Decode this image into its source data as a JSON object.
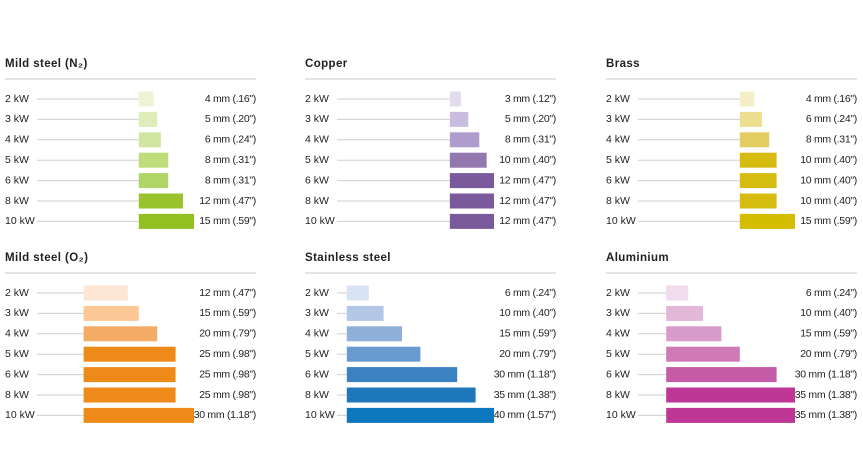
{
  "chart_data": [
    {
      "type": "bar",
      "title": "Mild steel (N₂)",
      "categories": [
        "2 kW",
        "3 kW",
        "4 kW",
        "5 kW",
        "6 kW",
        "8 kW",
        "10 kW"
      ],
      "values": [
        4,
        5,
        6,
        8,
        8,
        12,
        15
      ],
      "value_labels": [
        "4 mm (.16\")",
        "5 mm (.20\")",
        "6 mm (.24\")",
        "8 mm (.31\")",
        "8 mm (.31\")",
        "12 mm (.47\")",
        "15 mm (.59\")"
      ],
      "colors": [
        "#eef3d6",
        "#dfedbb",
        "#cfe6a0",
        "#bedd7a",
        "#b0d567",
        "#9ac22a",
        "#92c020"
      ]
    },
    {
      "type": "bar",
      "title": "Copper",
      "categories": [
        "2 kW",
        "3 kW",
        "4 kW",
        "5 kW",
        "6 kW",
        "8 kW",
        "10 kW"
      ],
      "values": [
        3,
        5,
        8,
        10,
        12,
        12,
        12
      ],
      "value_labels": [
        "3 mm (.12\")",
        "5 mm (.20\")",
        "8 mm (.31\")",
        "10 mm (.40\")",
        "12 mm (.47\")",
        "12 mm (.47\")",
        "12 mm (.47\")"
      ],
      "colors": [
        "#e2dcec",
        "#c9bde0",
        "#b09ccc",
        "#9378b0",
        "#7b5a9c",
        "#7b5a9c",
        "#7b5a9c"
      ]
    },
    {
      "type": "bar",
      "title": "Brass",
      "categories": [
        "2 kW",
        "3 kW",
        "4 kW",
        "5 kW",
        "6 kW",
        "8 kW",
        "10 kW"
      ],
      "values": [
        4,
        6,
        8,
        10,
        10,
        10,
        15
      ],
      "value_labels": [
        "4 mm (.16\")",
        "6 mm (.24\")",
        "8 mm (.31\")",
        "10 mm (.40\")",
        "10 mm (.40\")",
        "10 mm (.40\")",
        "15 mm (.59\")"
      ],
      "colors": [
        "#f4efc8",
        "#ecdf90",
        "#e3cc60",
        "#d6bb10",
        "#d6bb10",
        "#d6bb10",
        "#d4bc00"
      ]
    },
    {
      "type": "bar",
      "title": "Mild steel (O₂)",
      "categories": [
        "2 kW",
        "3 kW",
        "4 kW",
        "5 kW",
        "6 kW",
        "8 kW",
        "10 kW"
      ],
      "values": [
        12,
        15,
        20,
        25,
        25,
        25,
        30
      ],
      "value_labels": [
        "12 mm (.47\")",
        "15 mm (.59\")",
        "20 mm (.79\")",
        "25 mm (.98\")",
        "25 mm (.98\")",
        "25 mm (.98\")",
        "30 mm (1.18\")"
      ],
      "colors": [
        "#fde6d4",
        "#fbc896",
        "#f3ab66",
        "#ee8a18",
        "#ee8a18",
        "#ee8a18",
        "#ee8a18"
      ]
    },
    {
      "type": "bar",
      "title": "Stainless steel",
      "categories": [
        "2 kW",
        "3 kW",
        "4 kW",
        "5 kW",
        "6 kW",
        "8 kW",
        "10 kW"
      ],
      "values": [
        6,
        10,
        15,
        20,
        30,
        35,
        40
      ],
      "value_labels": [
        "6 mm (.24\")",
        "10 mm (.40\")",
        "15 mm (.59\")",
        "20 mm (.79\")",
        "30 mm (1.18\")",
        "35 mm (1.38\")",
        "40 mm (1.57\")"
      ],
      "colors": [
        "#d8e4f3",
        "#b2c8e6",
        "#8fb0da",
        "#6a9bd0",
        "#3a82c2",
        "#1f78bb",
        "#0d78bd"
      ]
    },
    {
      "type": "bar",
      "title": "Aluminium",
      "categories": [
        "2 kW",
        "3 kW",
        "4 kW",
        "5 kW",
        "6 kW",
        "8 kW",
        "10 kW"
      ],
      "values": [
        6,
        10,
        15,
        20,
        30,
        35,
        35
      ],
      "value_labels": [
        "6 mm (.24\")",
        "10 mm (.40\")",
        "15 mm (.59\")",
        "20 mm (.79\")",
        "30 mm (1.18\")",
        "35 mm (1.38\")",
        "35 mm (1.38\")"
      ],
      "colors": [
        "#f1dcef",
        "#e2b7d8",
        "#d89bcc",
        "#cf79b6",
        "#c55aa6",
        "#be3795",
        "#be3795"
      ]
    }
  ]
}
